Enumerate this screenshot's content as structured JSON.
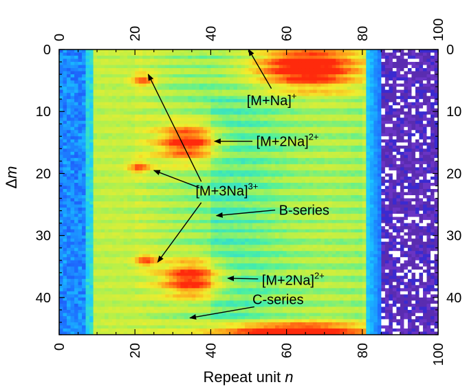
{
  "chart_data": {
    "type": "heatmap",
    "xlabel": "Repeat unit",
    "xlabel_var": "n",
    "ylabel_var": "m",
    "ylabel_prefix": "Δ",
    "xlim": [
      0,
      100
    ],
    "ylim": [
      0,
      46
    ],
    "y_inverted": true,
    "xticks": [
      0,
      20,
      40,
      60,
      80,
      100
    ],
    "yticks": [
      0,
      10,
      20,
      30,
      40
    ],
    "grid": false,
    "colormap": [
      "#2222cc",
      "#1e6cff",
      "#19c8ff",
      "#4cf0a0",
      "#b6f04a",
      "#f2ec2c",
      "#ff9a1a",
      "#ff2a0c"
    ],
    "background_low_color": "#5a2cb0",
    "blobs": [
      {
        "label": "[M+Na]+",
        "x": 65,
        "y": 3,
        "intensity": 1.0
      },
      {
        "label": "[M+2Na]2+",
        "x": 34,
        "y": 15,
        "intensity": 1.0
      },
      {
        "label": "[M+2Na]2+",
        "x": 35,
        "y": 37,
        "intensity": 1.0
      },
      {
        "label": "[M+3Na]3+",
        "x": 22,
        "y": 5,
        "intensity": 0.6
      },
      {
        "label": "[M+3Na]3+",
        "x": 21,
        "y": 19,
        "intensity": 0.6
      },
      {
        "label": "[M+3Na]3+",
        "x": 23,
        "y": 34,
        "intensity": 0.6
      },
      {
        "label": "bottom",
        "x": 60,
        "y": 45.5,
        "intensity": 1.0
      }
    ],
    "bright_rows": [
      0.5,
      2,
      3.5,
      5,
      7,
      9,
      11,
      13,
      15,
      17,
      19,
      21,
      23,
      25,
      27,
      28.5,
      30,
      32,
      34,
      36,
      38,
      40,
      42,
      44,
      45.5
    ],
    "annotations": [
      {
        "id": "mna1",
        "base": "[M+Na]",
        "sup": "+",
        "text_x": 49.5,
        "text_y": 8.2,
        "arrow_from_x": 56,
        "arrow_from_y": 6.3,
        "arrow_to_x": 50,
        "arrow_to_y": 0
      },
      {
        "id": "m2na_top",
        "base": "[M+2Na]",
        "sup": "2+",
        "text_x": 52,
        "text_y": 14.8,
        "arrow_from_x": 51,
        "arrow_from_y": 14.8,
        "arrow_to_x": 41,
        "arrow_to_y": 14.8
      },
      {
        "id": "m3na",
        "base": "[M+3Na]",
        "sup": "3+",
        "text_x": 36,
        "text_y": 22.8,
        "arrow_from_x": 37.5,
        "arrow_from_y": 21.3,
        "arrow_to_x": 23.5,
        "arrow_to_y": 4,
        "extra_arrows": [
          [
            37,
            22.3,
            25,
            19.5
          ],
          [
            37.5,
            24.7,
            26,
            34.3
          ]
        ]
      },
      {
        "id": "bseries",
        "base": "B-series",
        "sup": "",
        "text_x": 58,
        "text_y": 25.9,
        "arrow_from_x": 57,
        "arrow_from_y": 25.9,
        "arrow_to_x": 41.5,
        "arrow_to_y": 26.8
      },
      {
        "id": "m2na_bot",
        "base": "[M+2Na]",
        "sup": "2+",
        "text_x": 53.5,
        "text_y": 37.2,
        "arrow_from_x": 52.5,
        "arrow_from_y": 37,
        "arrow_to_x": 44.5,
        "arrow_to_y": 36.9
      },
      {
        "id": "cseries",
        "base": "C-series",
        "sup": "",
        "text_x": 51,
        "text_y": 40.3,
        "arrow_from_x": 51.5,
        "arrow_from_y": 41.5,
        "arrow_to_x": 34.5,
        "arrow_to_y": 43.3
      }
    ]
  }
}
